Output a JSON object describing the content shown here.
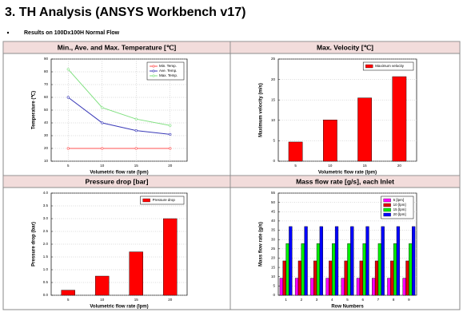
{
  "page_title": "3. TH Analysis (ANSYS Workbench v17)",
  "bullet": "Results on 100Dx100H Normal Flow",
  "chart_data": [
    {
      "type": "line",
      "title": "Min., Ave. and Max. Temperature [℃]",
      "x_label": "Volumetric flow rate (lpm)",
      "y_label": "Temperature (℃)",
      "x": [
        5,
        10,
        15,
        20
      ],
      "xlim": [
        2.5,
        22.5
      ],
      "xticks": [
        5,
        10,
        15,
        20
      ],
      "ylim": [
        10,
        90
      ],
      "yticks": [
        10,
        20,
        30,
        40,
        50,
        60,
        70,
        80,
        90
      ],
      "grid": true,
      "legend": "upper right",
      "series": [
        {
          "name": "Min. Temp.",
          "color": "#ff5050",
          "values": [
            20,
            20,
            20,
            20
          ]
        },
        {
          "name": "Ave. Temp.",
          "color": "#3a3ab8",
          "values": [
            60,
            40,
            34,
            31
          ]
        },
        {
          "name": "Max. Temp.",
          "color": "#80e080",
          "values": [
            82,
            52,
            43,
            38
          ]
        }
      ]
    },
    {
      "type": "bar",
      "title": "Max. Velocity [℃]",
      "x_label": "Volumetric flow rate (lpm)",
      "y_label": "Maximum velocity (m/s)",
      "categories": [
        "5",
        "10",
        "15",
        "20"
      ],
      "ylim": [
        0,
        25
      ],
      "yticks": [
        0,
        5,
        10,
        15,
        20,
        25
      ],
      "grid": true,
      "legend": "upper right",
      "series": [
        {
          "name": "Maximum velocity",
          "color": "#ff0000",
          "values": [
            4.7,
            10.1,
            15.5,
            20.7
          ]
        }
      ]
    },
    {
      "type": "bar",
      "title": "Pressure drop [bar]",
      "x_label": "Volumetric flow rate (lpm)",
      "y_label": "Pressure drop (bar)",
      "categories": [
        "5",
        "10",
        "15",
        "20"
      ],
      "ylim": [
        0,
        4
      ],
      "yticks": [
        {
          "value": 0,
          "label": "0.0"
        },
        0.5,
        {
          "value": 1,
          "label": "1.0"
        },
        1.5,
        {
          "value": 2,
          "label": "2.0"
        },
        2.5,
        {
          "value": 3,
          "label": "3.0"
        },
        3.5,
        {
          "value": 4,
          "label": "4.0"
        }
      ],
      "grid": true,
      "legend": "upper right",
      "series": [
        {
          "name": "Pressure drop",
          "color": "#ff0000",
          "values": [
            0.2,
            0.75,
            1.7,
            3.0
          ]
        }
      ]
    },
    {
      "type": "bar",
      "title": "Mass flow rate [g/s], each Inlet",
      "x_label": "Row Numbers",
      "y_label": "Mass flow rate (g/s)",
      "categories": [
        "1",
        "2",
        "3",
        "4",
        "5",
        "6",
        "7",
        "8",
        "9"
      ],
      "ylim": [
        0,
        55
      ],
      "yticks": [
        0,
        5,
        10,
        15,
        20,
        25,
        30,
        35,
        40,
        45,
        50,
        55
      ],
      "grid": true,
      "legend": "upper right",
      "series": [
        {
          "name": "5 [lpm]",
          "color": "#ff00ff",
          "values": [
            9.2,
            9.2,
            9.2,
            9.2,
            9.2,
            9.2,
            9.2,
            9.2,
            9.2
          ]
        },
        {
          "name": "10 [lpm]",
          "color": "#e00000",
          "values": [
            18.5,
            18.5,
            18.5,
            18.5,
            18.5,
            18.5,
            18.5,
            18.5,
            18.5
          ]
        },
        {
          "name": "15 [lpm]",
          "color": "#00ee00",
          "values": [
            27.8,
            27.8,
            27.8,
            27.8,
            27.8,
            27.8,
            27.8,
            27.8,
            27.8
          ]
        },
        {
          "name": "20 [lpm]",
          "color": "#0000ff",
          "values": [
            37,
            37,
            37,
            37,
            37,
            37,
            37,
            37,
            37
          ]
        }
      ]
    }
  ]
}
